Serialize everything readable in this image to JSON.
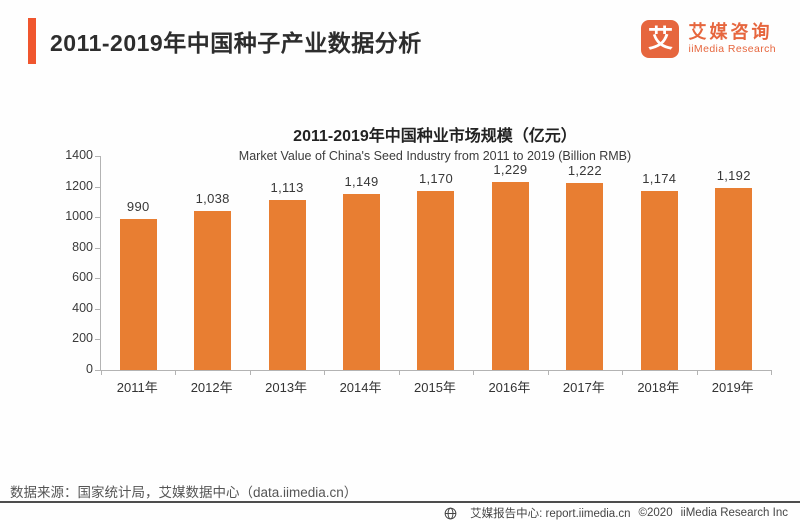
{
  "header": {
    "title": "2011-2019年中国种子产业数据分析",
    "logo": {
      "mark": "艾",
      "name_cn": "艾媒咨询",
      "name_en": "iiMedia Research"
    }
  },
  "chart_data": {
    "type": "bar",
    "title": "2011-2019年中国种业市场规模（亿元）",
    "subtitle": "Market Value of China's Seed Industry from 2011 to 2019 (Billion RMB)",
    "categories": [
      "2011年",
      "2012年",
      "2013年",
      "2014年",
      "2015年",
      "2016年",
      "2017年",
      "2018年",
      "2019年"
    ],
    "values": [
      990,
      1038,
      1113,
      1149,
      1170,
      1229,
      1222,
      1174,
      1192
    ],
    "value_labels": [
      "990",
      "1,038",
      "1,113",
      "1,149",
      "1,170",
      "1,229",
      "1,222",
      "1,174",
      "1,192"
    ],
    "xlabel": "",
    "ylabel": "",
    "ylim": [
      0,
      1400
    ],
    "ytick_step": 200,
    "grid": false,
    "legend": false,
    "bar_color": "#E87E32"
  },
  "source_note": "数据来源：国家统计局，艾媒数据中心（data.iimedia.cn）",
  "footer": {
    "label": "艾媒报告中心: report.iimedia.cn",
    "copyright": "©2020",
    "company": "iiMedia Research Inc"
  },
  "colors": {
    "accent": "#F0562E",
    "logo_orange": "#E6663E",
    "bar_orange": "#E87E32",
    "axis_gray": "#b3b3b3",
    "footer_rule": "#4d4d4d"
  }
}
